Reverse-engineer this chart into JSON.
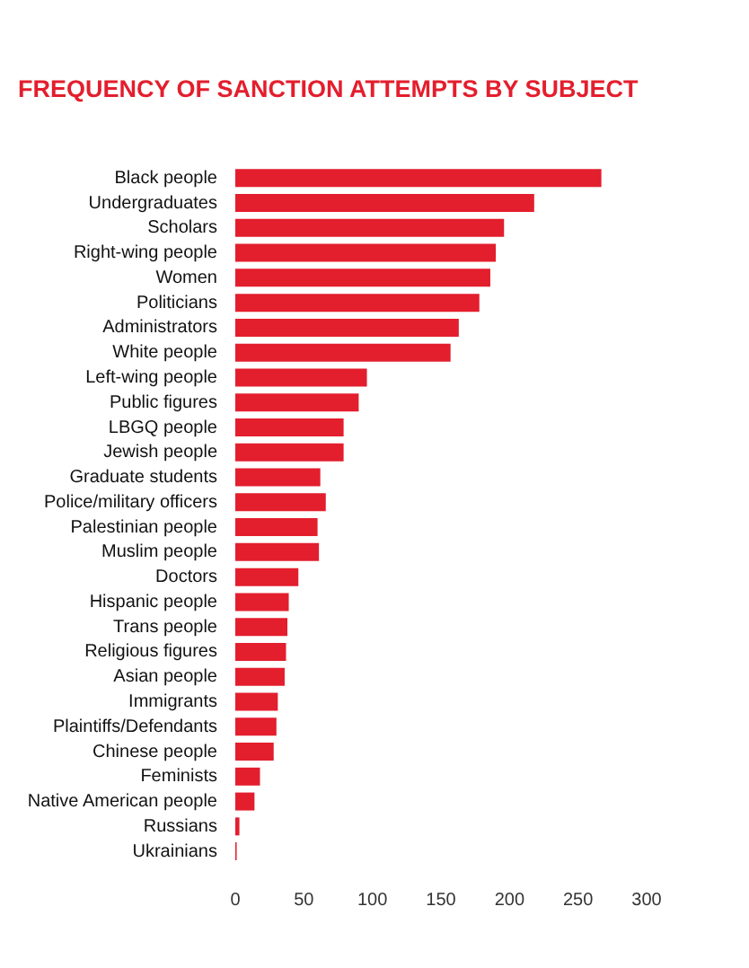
{
  "chart_data": {
    "type": "bar",
    "orientation": "horizontal",
    "title": "FREQUENCY OF SANCTION ATTEMPTS BY SUBJECT",
    "categories": [
      "Black people",
      "Undergraduates",
      "Scholars",
      "Right-wing people",
      "Women",
      "Politicians",
      "Administrators",
      "White people",
      "Left-wing people",
      "Public figures",
      "LBGQ people",
      "Jewish people",
      "Graduate students",
      "Police/military officers",
      "Palestinian people",
      "Muslim people",
      "Doctors",
      "Hispanic people",
      "Trans people",
      "Religious figures",
      "Asian people",
      "Immigrants",
      "Plaintiffs/Defendants",
      "Chinese people",
      "Feminists",
      "Native American people",
      "Russians",
      "Ukrainians"
    ],
    "values": [
      267,
      218,
      196,
      190,
      186,
      178,
      163,
      157,
      96,
      90,
      79,
      79,
      62,
      66,
      60,
      61,
      46,
      39,
      38,
      37,
      36,
      31,
      30,
      28,
      18,
      14,
      3,
      1
    ],
    "color": "#e31e2d",
    "xlim": [
      0,
      300
    ],
    "xticks": [
      0,
      50,
      100,
      150,
      200,
      250,
      300
    ],
    "grid": false,
    "legend": false
  }
}
